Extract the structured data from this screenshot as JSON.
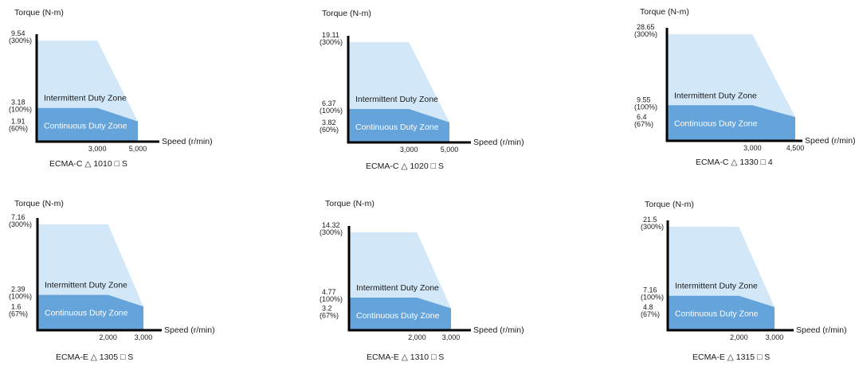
{
  "colors": {
    "intermittent_zone": "#d2e8f8",
    "continuous_zone": "#65a3db",
    "axis": "#000000",
    "text": "#1a1a1a",
    "zone_text_on_dark": "#ffffff"
  },
  "chart_data": [
    {
      "type": "area",
      "title": "ECMA-C △ 1010 □ S",
      "ylabel": "Torque (N-m)",
      "xlabel": "Speed (r/min)",
      "x_ticks": [
        "3,000",
        "5,000"
      ],
      "x_tick_values": [
        3000,
        5000
      ],
      "y_ticks": [
        {
          "value": "9.54",
          "pct": "(300%)"
        },
        {
          "value": "3.18",
          "pct": "(100%)"
        },
        {
          "value": "1.91",
          "pct": "(60%)"
        }
      ],
      "series": [
        {
          "name": "Intermittent Duty Zone",
          "x": [
            0,
            3000,
            5000,
            5000
          ],
          "y": [
            9.54,
            9.54,
            1.91,
            0
          ]
        },
        {
          "name": "Continuous Duty Zone",
          "x": [
            0,
            3000,
            5000,
            5000
          ],
          "y": [
            3.18,
            3.18,
            1.91,
            0
          ]
        }
      ],
      "xlim": [
        0,
        5000
      ],
      "ylim": [
        0,
        9.54
      ]
    },
    {
      "type": "area",
      "title": "ECMA-C △ 1020 □ S",
      "ylabel": "Torque (N-m)",
      "xlabel": "Speed (r/min)",
      "x_ticks": [
        "3,000",
        "5,000"
      ],
      "x_tick_values": [
        3000,
        5000
      ],
      "y_ticks": [
        {
          "value": "19.11",
          "pct": "(300%)"
        },
        {
          "value": "6.37",
          "pct": "(100%)"
        },
        {
          "value": "3.82",
          "pct": "(60%)"
        }
      ],
      "series": [
        {
          "name": "Intermittent Duty Zone",
          "x": [
            0,
            3000,
            5000,
            5000
          ],
          "y": [
            19.11,
            19.11,
            3.82,
            0
          ]
        },
        {
          "name": "Continuous Duty Zone",
          "x": [
            0,
            3000,
            5000,
            5000
          ],
          "y": [
            6.37,
            6.37,
            3.82,
            0
          ]
        }
      ],
      "xlim": [
        0,
        5000
      ],
      "ylim": [
        0,
        19.11
      ]
    },
    {
      "type": "area",
      "title": "ECMA-C △ 1330 □ 4",
      "ylabel": "Torque (N-m)",
      "xlabel": "Speed (r/min)",
      "x_ticks": [
        "3,000",
        "4,500"
      ],
      "x_tick_values": [
        3000,
        4500
      ],
      "y_ticks": [
        {
          "value": "28.65",
          "pct": "(300%)"
        },
        {
          "value": "9.55",
          "pct": "(100%)"
        },
        {
          "value": "6.4",
          "pct": "(67%)"
        }
      ],
      "series": [
        {
          "name": "Intermittent Duty Zone",
          "x": [
            0,
            3000,
            4500,
            4500
          ],
          "y": [
            28.65,
            28.65,
            6.4,
            0
          ]
        },
        {
          "name": "Continuous Duty Zone",
          "x": [
            0,
            3000,
            4500,
            4500
          ],
          "y": [
            9.55,
            9.55,
            6.4,
            0
          ]
        }
      ],
      "xlim": [
        0,
        4500
      ],
      "ylim": [
        0,
        28.65
      ]
    },
    {
      "type": "area",
      "title": "ECMA-E △ 1305 □ S",
      "ylabel": "Torque (N-m)",
      "xlabel": "Speed (r/min)",
      "x_ticks": [
        "2,000",
        "3,000"
      ],
      "x_tick_values": [
        2000,
        3000
      ],
      "y_ticks": [
        {
          "value": "7.16",
          "pct": "(300%)"
        },
        {
          "value": "2.39",
          "pct": "(100%)"
        },
        {
          "value": "1.6",
          "pct": "(67%)"
        }
      ],
      "series": [
        {
          "name": "Intermittent Duty Zone",
          "x": [
            0,
            2000,
            3000,
            3000
          ],
          "y": [
            7.16,
            7.16,
            1.6,
            0
          ]
        },
        {
          "name": "Continuous Duty Zone",
          "x": [
            0,
            2000,
            3000,
            3000
          ],
          "y": [
            2.39,
            2.39,
            1.6,
            0
          ]
        }
      ],
      "xlim": [
        0,
        3000
      ],
      "ylim": [
        0,
        7.16
      ]
    },
    {
      "type": "area",
      "title": "ECMA-E △ 1310 □ S",
      "ylabel": "Torque (N-m)",
      "xlabel": "Speed (r/min)",
      "x_ticks": [
        "2,000",
        "3,000"
      ],
      "x_tick_values": [
        2000,
        3000
      ],
      "y_ticks": [
        {
          "value": "14.32",
          "pct": "(300%)"
        },
        {
          "value": "4.77",
          "pct": "(100%)"
        },
        {
          "value": "3.2",
          "pct": "(67%)"
        }
      ],
      "series": [
        {
          "name": "Intermittent Duty Zone",
          "x": [
            0,
            2000,
            3000,
            3000
          ],
          "y": [
            14.32,
            14.32,
            3.2,
            0
          ]
        },
        {
          "name": "Continuous Duty Zone",
          "x": [
            0,
            2000,
            3000,
            3000
          ],
          "y": [
            4.77,
            4.77,
            3.2,
            0
          ]
        }
      ],
      "xlim": [
        0,
        3000
      ],
      "ylim": [
        0,
        14.32
      ]
    },
    {
      "type": "area",
      "title": "ECMA-E △ 1315 □ S",
      "ylabel": "Torque (N-m)",
      "xlabel": "Speed (r/min)",
      "x_ticks": [
        "2,000",
        "3,000"
      ],
      "x_tick_values": [
        2000,
        3000
      ],
      "y_ticks": [
        {
          "value": "21.5",
          "pct": "(300%)"
        },
        {
          "value": "7.16",
          "pct": "(100%)"
        },
        {
          "value": "4.8",
          "pct": "(67%)"
        }
      ],
      "series": [
        {
          "name": "Intermittent Duty Zone",
          "x": [
            0,
            2000,
            3000,
            3000
          ],
          "y": [
            21.5,
            21.5,
            4.8,
            0
          ]
        },
        {
          "name": "Continuous Duty Zone",
          "x": [
            0,
            2000,
            3000,
            3000
          ],
          "y": [
            7.16,
            7.16,
            4.8,
            0
          ]
        }
      ],
      "xlim": [
        0,
        3000
      ],
      "ylim": [
        0,
        21.5
      ]
    }
  ]
}
